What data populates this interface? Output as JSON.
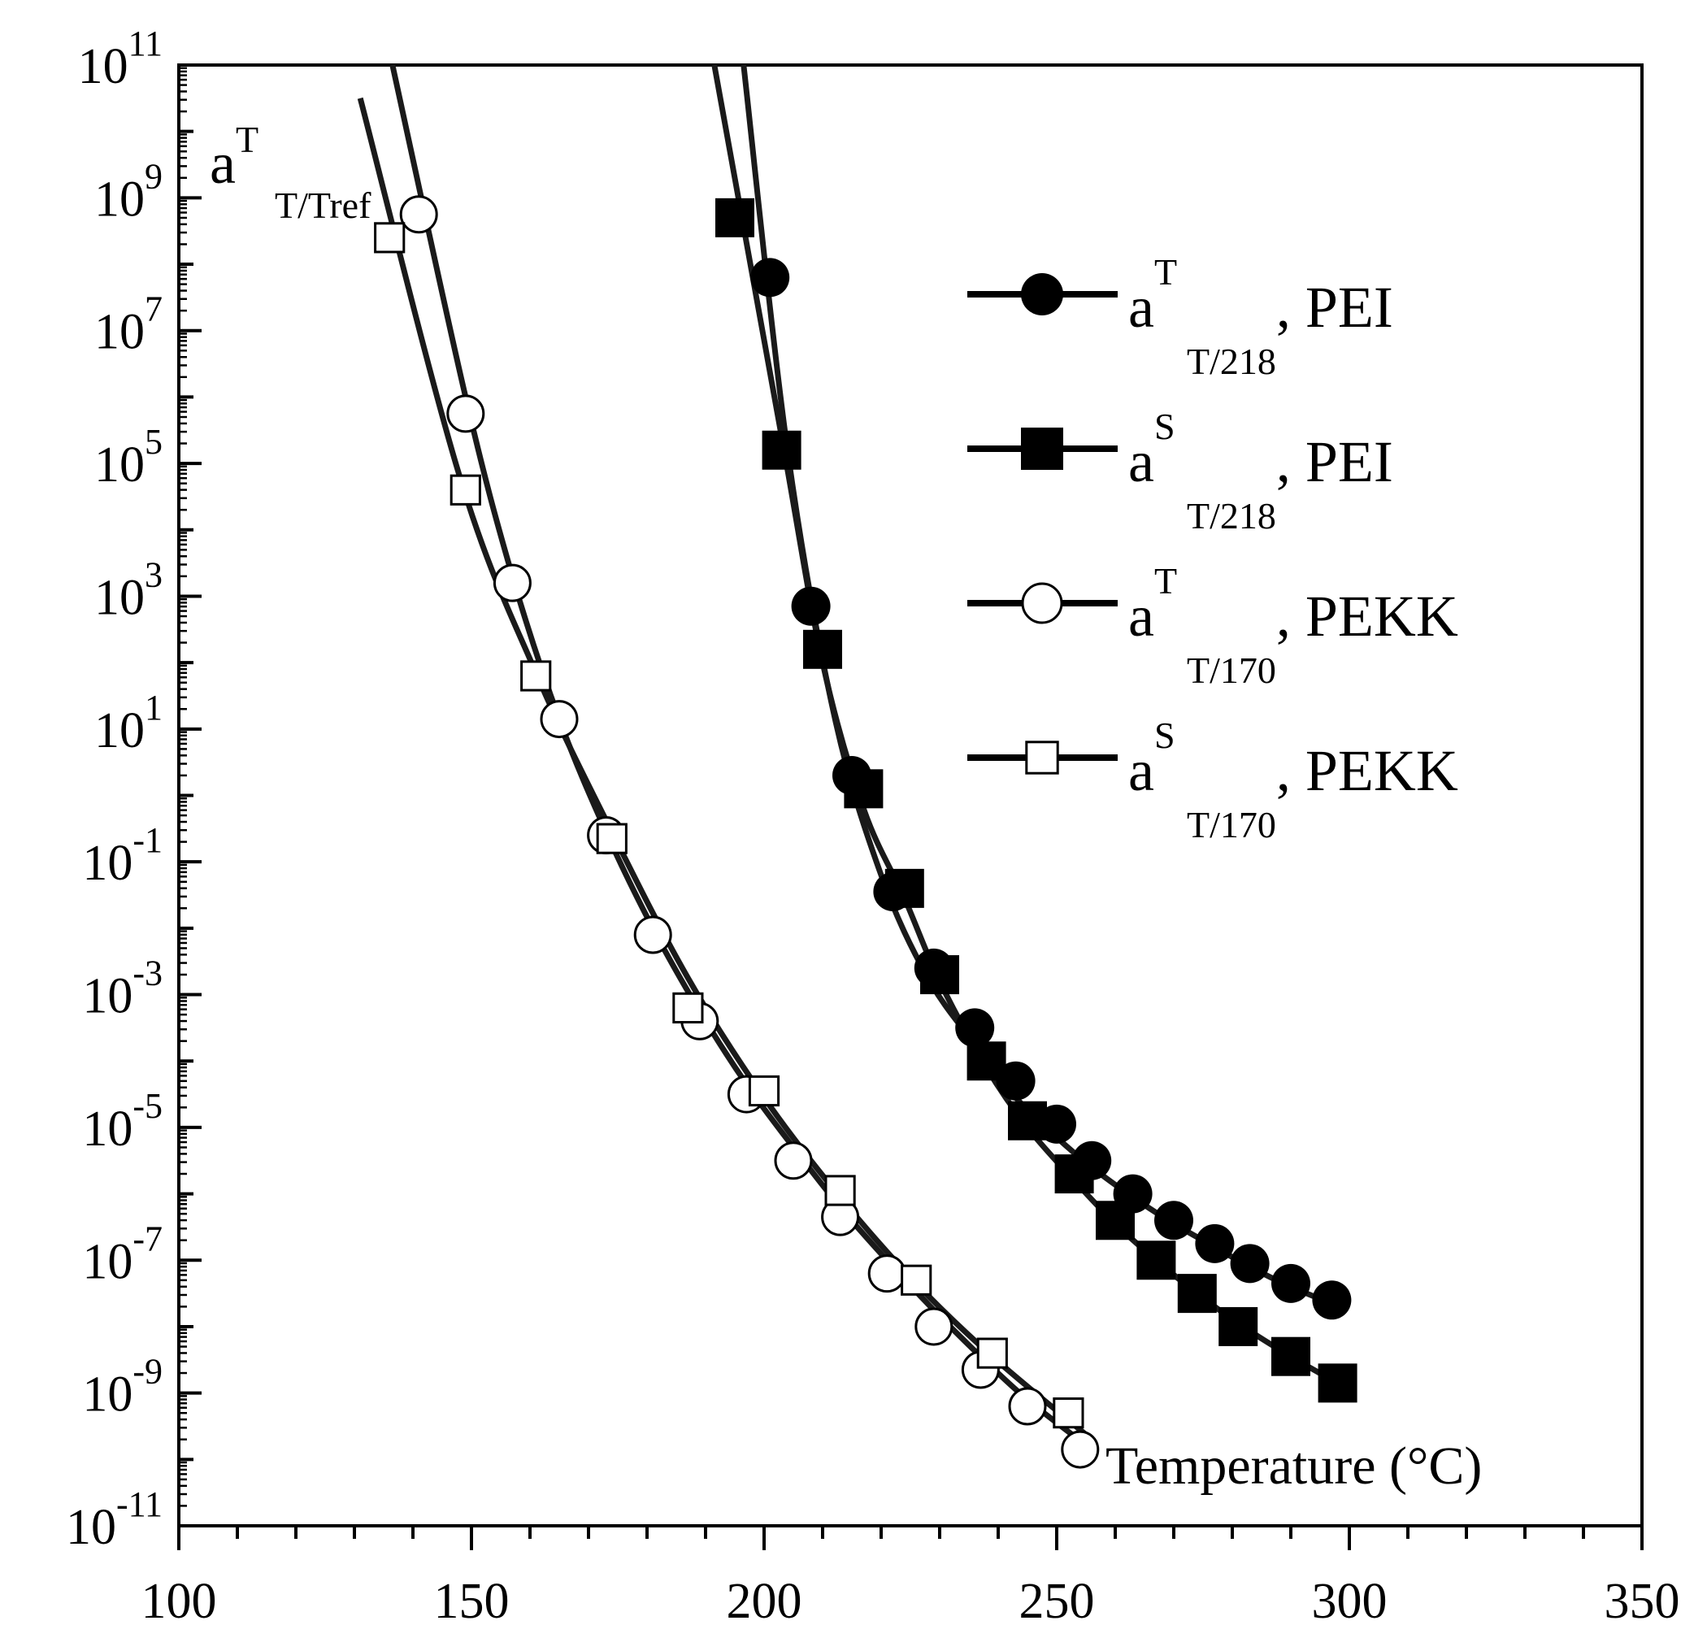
{
  "chart_data": {
    "type": "scatter",
    "title": "",
    "xlabel": "Temperature (°C)",
    "ylabel": {
      "base": "a",
      "sup": "T",
      "sub": "T/Tref"
    },
    "xlim": [
      100,
      350
    ],
    "ylim_log10": [
      -11,
      11
    ],
    "y_scale": "log",
    "x_ticks": [
      "100",
      "150",
      "200",
      "250",
      "300",
      "350"
    ],
    "y_ticks": [
      {
        "base": "10",
        "exp": "11"
      },
      {
        "base": "10",
        "exp": "9"
      },
      {
        "base": "10",
        "exp": "7"
      },
      {
        "base": "10",
        "exp": "5"
      },
      {
        "base": "10",
        "exp": "3"
      },
      {
        "base": "10",
        "exp": "1"
      },
      {
        "base": "10",
        "exp": "-1"
      },
      {
        "base": "10",
        "exp": "-3"
      },
      {
        "base": "10",
        "exp": "-5"
      },
      {
        "base": "10",
        "exp": "-7"
      },
      {
        "base": "10",
        "exp": "-9"
      },
      {
        "base": "10",
        "exp": "-11"
      }
    ],
    "series": [
      {
        "name": "aT T/218, PEI",
        "legend": {
          "base": "a",
          "sup": "T",
          "sub": "T/218",
          "suffix": ", PEI"
        },
        "marker": "circle-filled",
        "x": [
          201,
          208,
          215,
          222,
          229,
          236,
          243,
          250,
          256,
          263,
          270,
          277,
          283,
          290,
          297
        ],
        "log10_y": [
          7.8,
          2.85,
          0.3,
          -1.45,
          -2.6,
          -3.5,
          -4.3,
          -4.95,
          -5.5,
          -6.0,
          -6.4,
          -6.75,
          -7.05,
          -7.35,
          -7.6
        ],
        "fit_log10_y": [
          11,
          5.2,
          1.2,
          -1.2,
          -2.75,
          -3.75,
          -4.55,
          -5.15,
          -5.6,
          -6.05,
          -6.45,
          -6.8,
          -7.1,
          -7.4,
          -7.65
        ],
        "fit_x": [
          196.5,
          204,
          212,
          220,
          228,
          236,
          243,
          250,
          256,
          263,
          270,
          277,
          283,
          290,
          297
        ]
      },
      {
        "name": "aS T/218, PEI",
        "legend": {
          "base": "a",
          "sup": "S",
          "sub": "T/218",
          "suffix": ", PEI"
        },
        "marker": "square-filled",
        "x": [
          195,
          203,
          210,
          217,
          224,
          230,
          238,
          245,
          253,
          260,
          267,
          274,
          281,
          290,
          298
        ],
        "log10_y": [
          8.7,
          5.2,
          2.2,
          0.1,
          -1.4,
          -2.7,
          -4.0,
          -4.9,
          -5.7,
          -6.4,
          -7.0,
          -7.5,
          -8.0,
          -8.45,
          -8.85
        ],
        "fit_log10_y": [
          11,
          5.4,
          2.0,
          -0.2,
          -1.55,
          -2.8,
          -4.1,
          -5.0,
          -5.8,
          -6.45,
          -7.0,
          -7.5,
          -7.95,
          -8.45,
          -8.85
        ],
        "fit_x": [
          191.5,
          203,
          210,
          217,
          224,
          230,
          238,
          245,
          253,
          260,
          267,
          274,
          281,
          290,
          298
        ]
      },
      {
        "name": "aT T/170, PEKK",
        "legend": {
          "base": "a",
          "sup": "T",
          "sub": "T/170",
          "suffix": ", PEKK"
        },
        "marker": "circle-open",
        "x": [
          141,
          149,
          157,
          165,
          173,
          181,
          189,
          197,
          205,
          213,
          221,
          229,
          237,
          245,
          254
        ],
        "log10_y": [
          8.75,
          5.75,
          3.2,
          1.15,
          -0.6,
          -2.1,
          -3.4,
          -4.5,
          -5.5,
          -6.35,
          -7.2,
          -8.0,
          -8.65,
          -9.2,
          -9.85
        ],
        "fit_log10_y": [
          11,
          6.0,
          3.3,
          1.15,
          -0.55,
          -2.0,
          -3.25,
          -4.35,
          -5.3,
          -6.2,
          -7.0,
          -7.75,
          -8.45,
          -9.1,
          -9.85
        ],
        "fit_x": [
          136.5,
          149,
          157,
          165,
          173,
          181,
          189,
          197,
          205,
          213,
          221,
          229,
          237,
          245,
          256
        ]
      },
      {
        "name": "aS T/170, PEKK",
        "legend": {
          "base": "a",
          "sup": "S",
          "sub": "T/170",
          "suffix": ", PEKK"
        },
        "marker": "square-open",
        "x": [
          136,
          149,
          161,
          174,
          187,
          200,
          213,
          226,
          239,
          252
        ],
        "log10_y": [
          8.4,
          4.6,
          1.8,
          -0.65,
          -3.2,
          -4.45,
          -5.95,
          -7.3,
          -8.4,
          -9.3
        ],
        "fit_log10_y": [
          10.5,
          4.8,
          1.85,
          -0.55,
          -2.75,
          -4.55,
          -6.05,
          -7.35,
          -8.45,
          -9.7
        ],
        "fit_x": [
          131,
          148,
          161,
          174,
          187,
          200,
          213,
          226,
          239,
          256
        ]
      }
    ]
  }
}
